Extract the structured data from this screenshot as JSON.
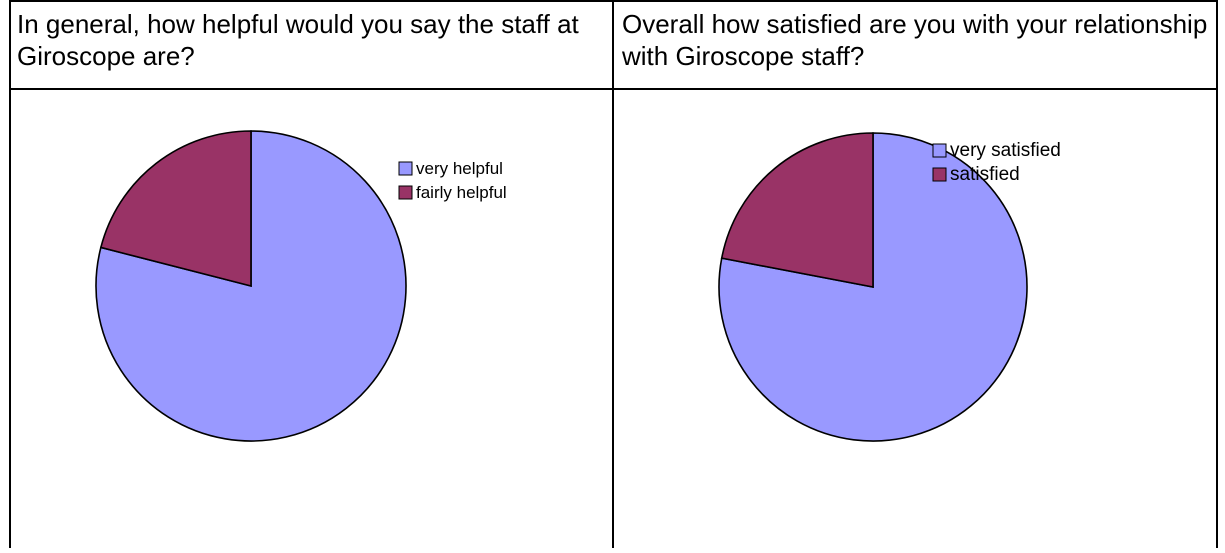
{
  "questions": {
    "left": "In general, how helpful would you say the staff at Giroscope are?",
    "right": "Overall how satisfied are you with your relationship with Giroscope staff?"
  },
  "chart_data": [
    {
      "type": "pie",
      "categories": [
        "very helpful",
        "fairly helpful"
      ],
      "values": [
        79,
        21
      ],
      "colors": [
        "#9999FF",
        "#993366"
      ],
      "legend_position": "top-right"
    },
    {
      "type": "pie",
      "categories": [
        "very satisfied",
        "satisfied"
      ],
      "values": [
        78,
        22
      ],
      "colors": [
        "#9999FF",
        "#993366"
      ],
      "legend_position": "top-right"
    }
  ]
}
